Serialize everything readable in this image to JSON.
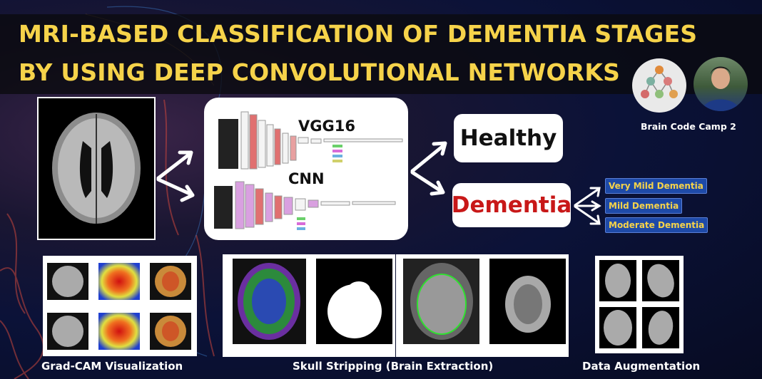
{
  "title": {
    "line1": "MRI-BASED CLASSIFICATION OF DEMENTIA STAGES",
    "line2": "BY USING DEEP CONVOLUTIONAL NETWORKS"
  },
  "camp": {
    "name": "Brain Code Camp 2"
  },
  "models": {
    "vgg": "VGG16",
    "cnn": "CNN"
  },
  "results": {
    "healthy": "Healthy",
    "dementia": "Dementia"
  },
  "stages": [
    "Very Mild Dementia",
    "Mild Dementia",
    "Moderate Dementia"
  ],
  "captions": {
    "gradcam": "Grad-CAM Visualization",
    "skull": "Skull Stripping (Brain Extraction)",
    "augmentation": "Data Augmentation"
  },
  "colors": {
    "title": "#f6d34a",
    "dementia_text": "#c81818",
    "stage_badge": "#1e4aa8",
    "stage_text": "#f6d34a"
  }
}
